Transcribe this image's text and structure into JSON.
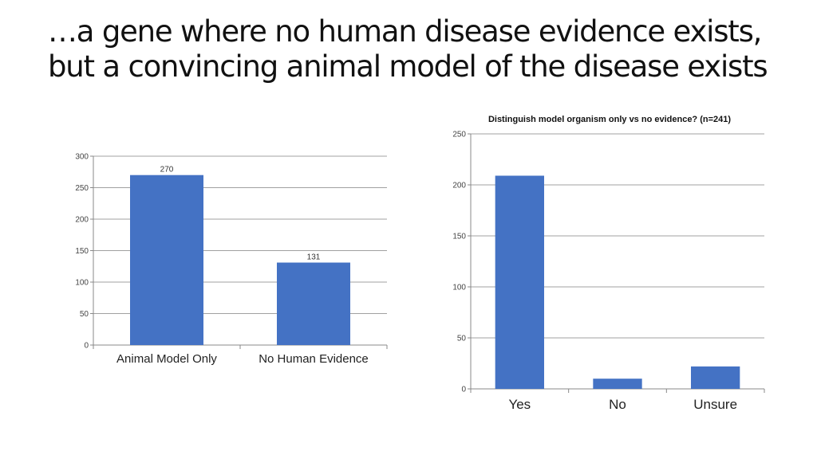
{
  "slide": {
    "title_line1": "…a gene where no human disease evidence exists,",
    "title_line2": "but a convincing animal model of the disease exists"
  },
  "colors": {
    "bar": "#4472c4",
    "grid": "#a0a0a0"
  },
  "chart_data": [
    {
      "type": "bar",
      "title": "",
      "categories": [
        "Animal Model Only",
        "No Human Evidence"
      ],
      "values": [
        270,
        131
      ],
      "data_labels": [
        "270",
        "131"
      ],
      "ylim": [
        0,
        300
      ],
      "yticks": [
        0,
        50,
        100,
        150,
        200,
        250,
        300
      ],
      "grid": true,
      "xlabel": "",
      "ylabel": ""
    },
    {
      "type": "bar",
      "title": "Distinguish model organism only vs no evidence? (n=241)",
      "categories": [
        "Yes",
        "No",
        "Unsure"
      ],
      "values": [
        209,
        10,
        22
      ],
      "ylim": [
        0,
        250
      ],
      "yticks": [
        0,
        50,
        100,
        150,
        200,
        250
      ],
      "grid": true,
      "xlabel": "",
      "ylabel": ""
    }
  ]
}
